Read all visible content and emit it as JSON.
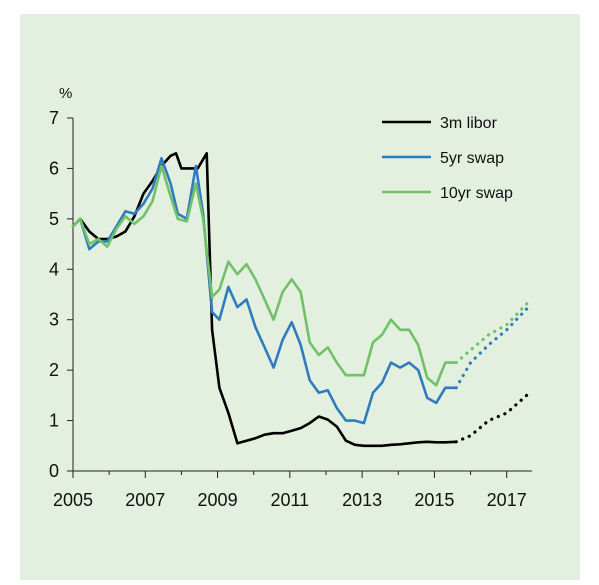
{
  "chart_data": {
    "type": "line",
    "ylabel": "%",
    "ylim": [
      0,
      7
    ],
    "xlim": [
      2005,
      2017.7
    ],
    "x_ticks": [
      2005,
      2007,
      2009,
      2011,
      2013,
      2015,
      2017
    ],
    "y_ticks": [
      0,
      1,
      2,
      3,
      4,
      5,
      6,
      7
    ],
    "legend_position": "top-right",
    "grid": false,
    "series": [
      {
        "name": "3m libor",
        "color": "#000000",
        "x": [
          2005.0,
          2005.2,
          2005.45,
          2005.7,
          2005.95,
          2006.2,
          2006.45,
          2006.7,
          2006.95,
          2007.2,
          2007.45,
          2007.7,
          2007.85,
          2008.0,
          2008.2,
          2008.45,
          2008.7,
          2008.85,
          2009.05,
          2009.3,
          2009.55,
          2009.8,
          2010.05,
          2010.3,
          2010.55,
          2010.8,
          2011.05,
          2011.3,
          2011.55,
          2011.8,
          2012.05,
          2012.3,
          2012.55,
          2012.8,
          2013.05,
          2013.3,
          2013.55,
          2013.8,
          2014.05,
          2014.3,
          2014.55,
          2014.8,
          2015.05,
          2015.3,
          2015.6
        ],
        "y": [
          4.85,
          5.0,
          4.75,
          4.6,
          4.6,
          4.65,
          4.75,
          5.05,
          5.5,
          5.75,
          6.05,
          6.25,
          6.3,
          6.0,
          6.0,
          6.0,
          6.3,
          2.8,
          1.65,
          1.15,
          0.55,
          0.6,
          0.65,
          0.72,
          0.75,
          0.75,
          0.8,
          0.85,
          0.95,
          1.08,
          1.02,
          0.88,
          0.6,
          0.52,
          0.5,
          0.5,
          0.5,
          0.52,
          0.53,
          0.55,
          0.57,
          0.58,
          0.57,
          0.57,
          0.58
        ],
        "forecast_x": [
          2015.6,
          2016.0,
          2016.5,
          2017.0,
          2017.55
        ],
        "forecast_y": [
          0.58,
          0.7,
          1.0,
          1.15,
          1.5
        ]
      },
      {
        "name": "5yr swap",
        "color": "#2f7bbf",
        "x": [
          2005.0,
          2005.2,
          2005.45,
          2005.7,
          2005.95,
          2006.2,
          2006.45,
          2006.7,
          2006.95,
          2007.2,
          2007.45,
          2007.7,
          2007.9,
          2008.15,
          2008.4,
          2008.6,
          2008.85,
          2009.05,
          2009.3,
          2009.55,
          2009.8,
          2010.05,
          2010.3,
          2010.55,
          2010.8,
          2011.05,
          2011.3,
          2011.55,
          2011.8,
          2012.05,
          2012.3,
          2012.55,
          2012.8,
          2013.05,
          2013.3,
          2013.55,
          2013.8,
          2014.05,
          2014.3,
          2014.55,
          2014.8,
          2015.05,
          2015.3,
          2015.6
        ],
        "y": [
          4.85,
          5.0,
          4.4,
          4.55,
          4.55,
          4.85,
          5.15,
          5.1,
          5.3,
          5.6,
          6.2,
          5.7,
          5.1,
          5.0,
          6.05,
          5.1,
          3.15,
          3.0,
          3.65,
          3.25,
          3.4,
          2.85,
          2.45,
          2.05,
          2.6,
          2.95,
          2.5,
          1.8,
          1.55,
          1.6,
          1.25,
          1.0,
          1.0,
          0.95,
          1.55,
          1.75,
          2.15,
          2.05,
          2.15,
          2.0,
          1.45,
          1.35,
          1.65,
          1.65
        ],
        "forecast_x": [
          2015.6,
          2016.0,
          2016.5,
          2017.0,
          2017.6
        ],
        "forecast_y": [
          1.65,
          2.15,
          2.5,
          2.8,
          3.25
        ]
      },
      {
        "name": "10yr swap",
        "color": "#72c06a",
        "x": [
          2005.0,
          2005.2,
          2005.45,
          2005.7,
          2005.95,
          2006.2,
          2006.45,
          2006.7,
          2006.95,
          2007.2,
          2007.45,
          2007.7,
          2007.9,
          2008.15,
          2008.4,
          2008.6,
          2008.85,
          2009.05,
          2009.3,
          2009.55,
          2009.8,
          2010.05,
          2010.3,
          2010.55,
          2010.8,
          2011.05,
          2011.3,
          2011.55,
          2011.8,
          2012.05,
          2012.3,
          2012.55,
          2012.8,
          2013.05,
          2013.3,
          2013.55,
          2013.8,
          2014.05,
          2014.3,
          2014.55,
          2014.8,
          2015.05,
          2015.3,
          2015.6
        ],
        "y": [
          4.85,
          5.0,
          4.5,
          4.6,
          4.45,
          4.8,
          5.05,
          4.9,
          5.05,
          5.35,
          6.05,
          5.45,
          5.0,
          4.95,
          5.7,
          5.0,
          3.45,
          3.6,
          4.15,
          3.9,
          4.1,
          3.8,
          3.4,
          3.0,
          3.55,
          3.8,
          3.55,
          2.55,
          2.3,
          2.45,
          2.15,
          1.9,
          1.9,
          1.9,
          2.55,
          2.7,
          3.0,
          2.8,
          2.8,
          2.5,
          1.85,
          1.7,
          2.15,
          2.15
        ],
        "forecast_x": [
          2015.6,
          2016.0,
          2016.5,
          2017.0,
          2017.6
        ],
        "forecast_y": [
          2.15,
          2.4,
          2.7,
          2.9,
          3.35
        ]
      }
    ]
  }
}
